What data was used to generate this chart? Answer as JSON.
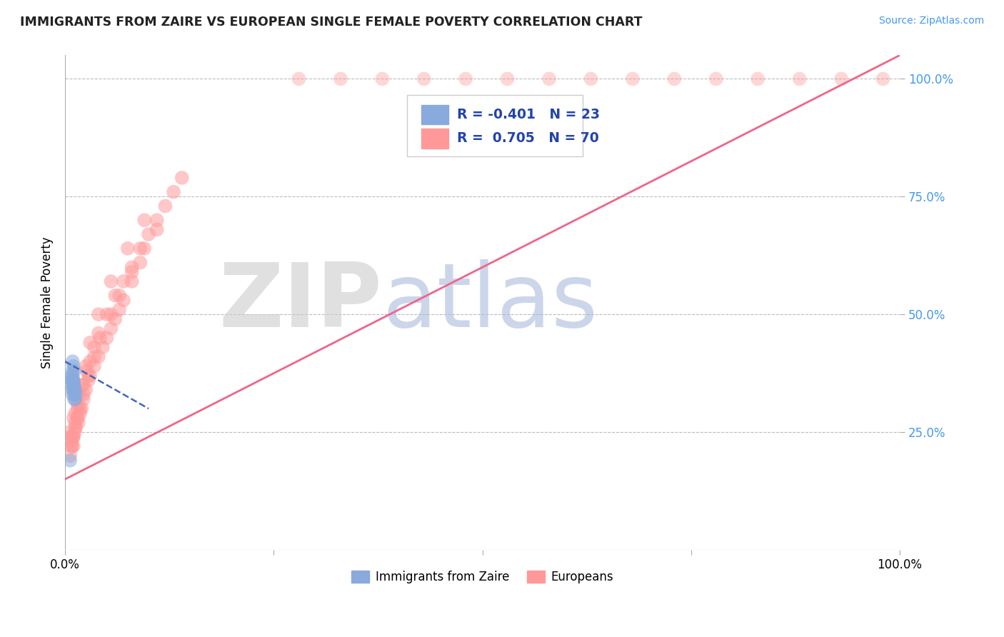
{
  "title": "IMMIGRANTS FROM ZAIRE VS EUROPEAN SINGLE FEMALE POVERTY CORRELATION CHART",
  "source": "Source: ZipAtlas.com",
  "ylabel": "Single Female Poverty",
  "xlim": [
    0,
    1
  ],
  "ylim": [
    0,
    1.05
  ],
  "yticks_right": [
    0.25,
    0.5,
    0.75,
    1.0
  ],
  "ytick_labels_right": [
    "25.0%",
    "50.0%",
    "75.0%",
    "100.0%"
  ],
  "blue_color": "#88AADD",
  "pink_color": "#FF9999",
  "blue_line_color": "#4466BB",
  "pink_line_color": "#EE6688",
  "legend_R_blue": "R = -0.401",
  "legend_N_blue": "N = 23",
  "legend_R_pink": "R =  0.705",
  "legend_N_pink": "N = 70",
  "watermark_zip": "ZIP",
  "watermark_atlas": "atlas",
  "watermark_zip_color": "#CCCCCC",
  "watermark_atlas_color": "#AABBDD",
  "grid_color": "#BBBBBB",
  "title_color": "#222222",
  "source_color": "#4499EE",
  "right_tick_color": "#4499EE",
  "blue_x": [
    0.008,
    0.009,
    0.01,
    0.011,
    0.012,
    0.013,
    0.009,
    0.01,
    0.011,
    0.01,
    0.009,
    0.008,
    0.01,
    0.011,
    0.012,
    0.008,
    0.009,
    0.01,
    0.009,
    0.011,
    0.006,
    0.009,
    0.01
  ],
  "blue_y": [
    0.37,
    0.38,
    0.36,
    0.35,
    0.34,
    0.33,
    0.4,
    0.39,
    0.38,
    0.35,
    0.37,
    0.36,
    0.34,
    0.33,
    0.32,
    0.35,
    0.34,
    0.36,
    0.33,
    0.32,
    0.19,
    0.36,
    0.35
  ],
  "pink_x": [
    0.005,
    0.006,
    0.008,
    0.009,
    0.01,
    0.012,
    0.013,
    0.015,
    0.016,
    0.018,
    0.02,
    0.022,
    0.025,
    0.028,
    0.03,
    0.035,
    0.04,
    0.045,
    0.05,
    0.055,
    0.06,
    0.065,
    0.07,
    0.08,
    0.09,
    0.01,
    0.012,
    0.015,
    0.018,
    0.022,
    0.026,
    0.03,
    0.035,
    0.04,
    0.05,
    0.06,
    0.07,
    0.08,
    0.09,
    0.1,
    0.11,
    0.12,
    0.13,
    0.14,
    0.008,
    0.01,
    0.012,
    0.015,
    0.018,
    0.022,
    0.028,
    0.035,
    0.042,
    0.055,
    0.065,
    0.08,
    0.095,
    0.11,
    0.006,
    0.008,
    0.01,
    0.012,
    0.015,
    0.02,
    0.025,
    0.03,
    0.04,
    0.055,
    0.075,
    0.095
  ],
  "pink_y": [
    0.25,
    0.24,
    0.23,
    0.24,
    0.22,
    0.25,
    0.26,
    0.28,
    0.27,
    0.29,
    0.3,
    0.32,
    0.34,
    0.36,
    0.37,
    0.39,
    0.41,
    0.43,
    0.45,
    0.47,
    0.49,
    0.51,
    0.53,
    0.57,
    0.61,
    0.28,
    0.29,
    0.31,
    0.33,
    0.35,
    0.38,
    0.4,
    0.43,
    0.46,
    0.5,
    0.54,
    0.57,
    0.6,
    0.64,
    0.67,
    0.7,
    0.73,
    0.76,
    0.79,
    0.22,
    0.24,
    0.26,
    0.28,
    0.3,
    0.33,
    0.37,
    0.41,
    0.45,
    0.5,
    0.54,
    0.59,
    0.64,
    0.68,
    0.2,
    0.22,
    0.24,
    0.27,
    0.3,
    0.35,
    0.39,
    0.44,
    0.5,
    0.57,
    0.64,
    0.7
  ],
  "pink_line_x0": 0.0,
  "pink_line_y0": 0.15,
  "pink_line_x1": 1.0,
  "pink_line_y1": 1.05,
  "blue_line_x0": 0.0,
  "blue_line_y0": 0.4,
  "blue_line_x1": 0.1,
  "blue_line_y1": 0.3,
  "top_pink_dots_x": [
    0.28,
    0.33,
    0.38,
    0.43,
    0.48,
    0.53,
    0.58,
    0.63,
    0.68,
    0.73,
    0.78,
    0.83,
    0.88,
    0.93,
    0.98
  ],
  "top_pink_dots_y": [
    1.0,
    1.0,
    1.0,
    1.0,
    1.0,
    1.0,
    1.0,
    1.0,
    1.0,
    1.0,
    1.0,
    1.0,
    1.0,
    1.0,
    1.0
  ]
}
